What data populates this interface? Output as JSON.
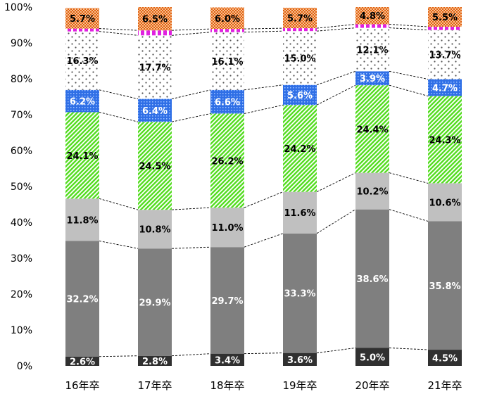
{
  "chart_data": {
    "type": "bar",
    "stacked": true,
    "percent": true,
    "categories": [
      "16年卒",
      "17年卒",
      "18年卒",
      "19年卒",
      "20年卒",
      "21年卒"
    ],
    "ylim": [
      0,
      100
    ],
    "yticks": [
      "0%",
      "10%",
      "20%",
      "30%",
      "40%",
      "50%",
      "60%",
      "70%",
      "80%",
      "90%",
      "100%"
    ],
    "grid": false,
    "series": [
      {
        "values": [
          2.6,
          2.8,
          3.4,
          3.6,
          5.0,
          4.5
        ],
        "labels": [
          "2.6%",
          "2.8%",
          "3.4%",
          "3.6%",
          "5.0%",
          "4.5%"
        ],
        "color": "#303030",
        "pattern": "solid",
        "label_color": "#ffffff"
      },
      {
        "values": [
          32.2,
          29.9,
          29.7,
          33.3,
          38.6,
          35.8
        ],
        "labels": [
          "32.2%",
          "29.9%",
          "29.7%",
          "33.3%",
          "38.6%",
          "35.8%"
        ],
        "color": "#7f7f7f",
        "pattern": "solid",
        "label_color": "#ffffff"
      },
      {
        "values": [
          11.8,
          10.8,
          11.0,
          11.6,
          10.2,
          10.6
        ],
        "labels": [
          "11.8%",
          "10.8%",
          "11.0%",
          "11.6%",
          "10.2%",
          "10.6%"
        ],
        "color": "#c0c0c0",
        "pattern": "solid",
        "label_color": "#000000"
      },
      {
        "values": [
          24.1,
          24.5,
          26.2,
          24.2,
          24.4,
          24.3
        ],
        "labels": [
          "24.1%",
          "24.5%",
          "26.2%",
          "24.2%",
          "24.4%",
          "24.3%"
        ],
        "color": "#66dd33",
        "pattern": "diagonal",
        "label_color": "#000000"
      },
      {
        "values": [
          6.2,
          6.4,
          6.6,
          5.6,
          3.9,
          4.7
        ],
        "labels": [
          "6.2%",
          "6.4%",
          "6.6%",
          "5.6%",
          "3.9%",
          "4.7%"
        ],
        "color": "#2f6fe6",
        "pattern": "dots",
        "label_color": "#ffffff"
      },
      {
        "values": [
          16.3,
          17.7,
          16.1,
          15.0,
          12.1,
          13.7
        ],
        "labels": [
          "16.3%",
          "17.7%",
          "16.1%",
          "15.0%",
          "12.1%",
          "13.7%"
        ],
        "color": "#555555",
        "pattern": "sparse",
        "label_color": "#000000"
      },
      {
        "values": [
          0.8,
          1.4,
          0.9,
          0.8,
          1.0,
          0.9
        ],
        "labels": [],
        "color": "#e020e0",
        "pattern": "dashes",
        "label_color": "#000000"
      },
      {
        "values": [
          5.7,
          6.5,
          6.0,
          5.7,
          4.8,
          5.5
        ],
        "labels": [
          "5.7%",
          "6.5%",
          "6.0%",
          "5.7%",
          "4.8%",
          "5.5%"
        ],
        "color": "#f08020",
        "pattern": "checker",
        "label_color": "#000000"
      }
    ]
  }
}
